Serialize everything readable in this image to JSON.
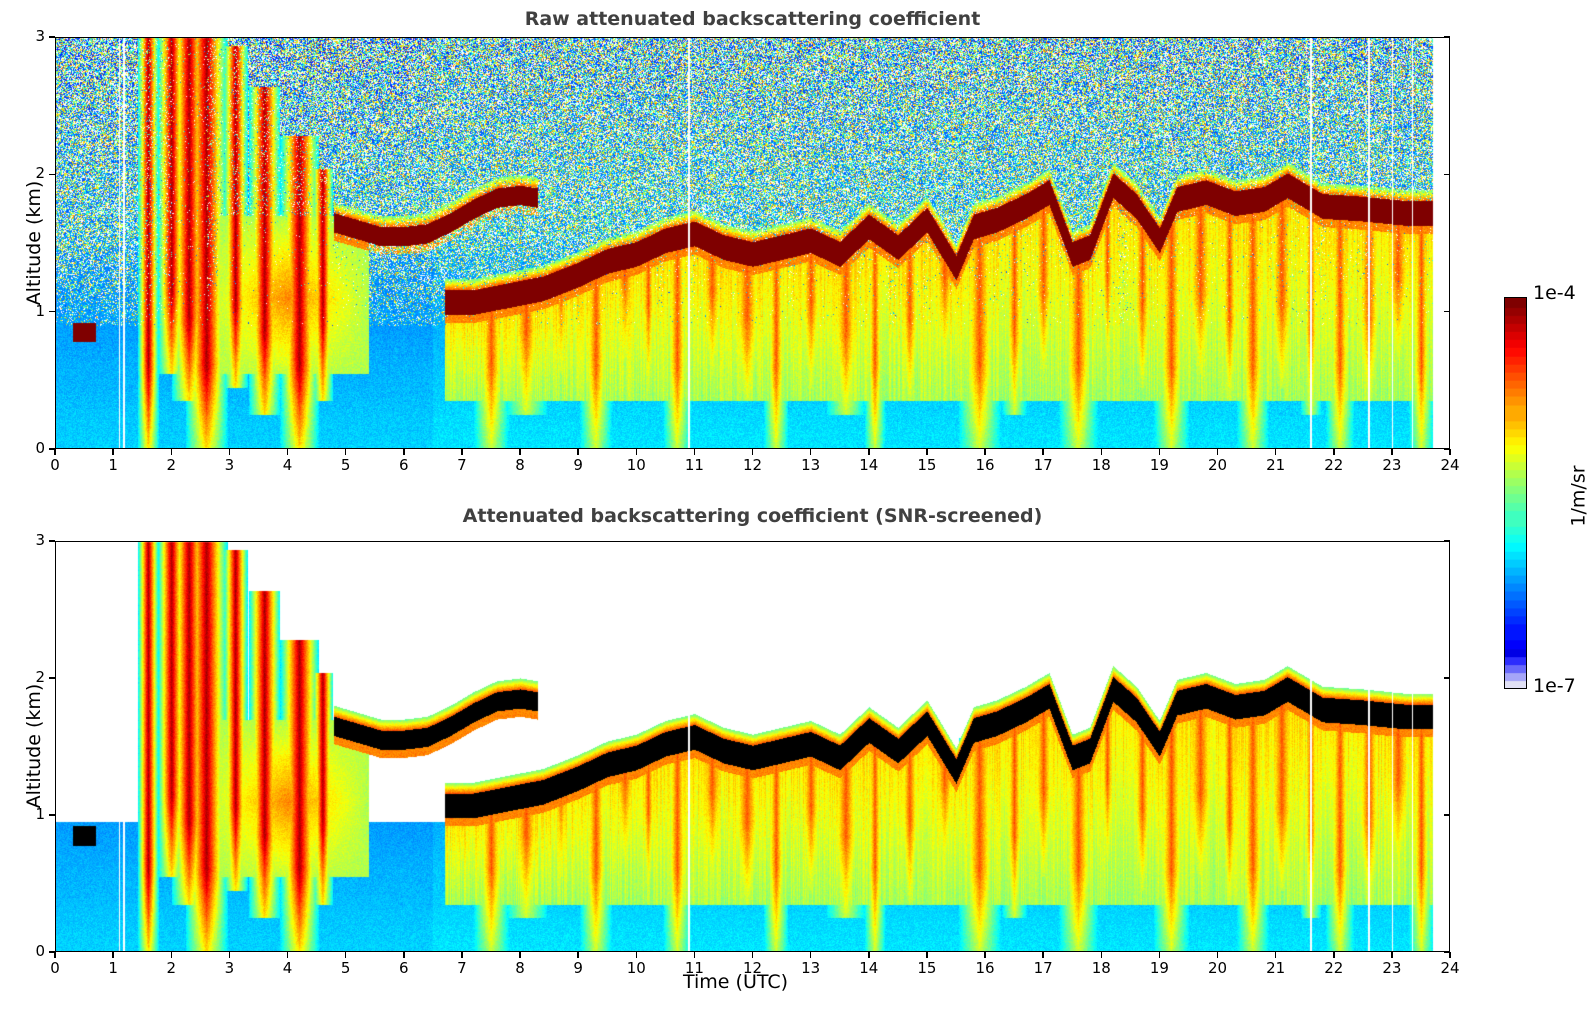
{
  "chart_data": [
    {
      "type": "heatmap",
      "title": "Raw attenuated backscattering coefficient",
      "xlabel": "",
      "ylabel": "Altitude (km)",
      "xlim": [
        0,
        24
      ],
      "ylim": [
        0,
        3
      ],
      "xticks": [
        "0",
        "1",
        "2",
        "3",
        "4",
        "5",
        "6",
        "7",
        "8",
        "9",
        "10",
        "11",
        "12",
        "13",
        "14",
        "15",
        "16",
        "17",
        "18",
        "19",
        "20",
        "21",
        "22",
        "23",
        "24"
      ],
      "yticks": [
        "0",
        "1",
        "2",
        "3"
      ],
      "screened": false
    },
    {
      "type": "heatmap",
      "title": "Attenuated backscattering coefficient (SNR-screened)",
      "xlabel": "Time (UTC)",
      "ylabel": "Altitude (km)",
      "xlim": [
        0,
        24
      ],
      "ylim": [
        0,
        3
      ],
      "xticks": [
        "0",
        "1",
        "2",
        "3",
        "4",
        "5",
        "6",
        "7",
        "8",
        "9",
        "10",
        "11",
        "12",
        "13",
        "14",
        "15",
        "16",
        "17",
        "18",
        "19",
        "20",
        "21",
        "22",
        "23",
        "24"
      ],
      "yticks": [
        "0",
        "1",
        "2",
        "3"
      ],
      "screened": true
    }
  ],
  "series": {
    "data_end_hour": 23.7,
    "cloud_layer_upper": {
      "time": [
        4.8,
        5.2,
        5.6,
        6.0,
        6.4,
        6.8,
        7.2,
        7.6,
        8.0,
        8.3
      ],
      "base_km": [
        1.6,
        1.55,
        1.5,
        1.5,
        1.52,
        1.6,
        1.7,
        1.78,
        1.8,
        1.78
      ]
    },
    "cloud_layer_main": {
      "time": [
        6.7,
        7.2,
        7.8,
        8.4,
        9.0,
        9.5,
        10.0,
        10.5,
        11.0,
        11.5,
        12.0,
        12.5,
        13.0,
        13.5,
        14.0,
        14.5,
        15.0,
        15.5,
        15.8,
        16.2,
        16.7,
        17.1,
        17.5,
        17.8,
        18.2,
        18.6,
        19.0,
        19.3,
        19.8,
        20.3,
        20.8,
        21.2,
        21.8,
        22.5,
        23.2,
        23.7
      ],
      "base_km": [
        1.0,
        1.0,
        1.05,
        1.1,
        1.2,
        1.3,
        1.35,
        1.45,
        1.5,
        1.4,
        1.35,
        1.4,
        1.45,
        1.35,
        1.55,
        1.4,
        1.6,
        1.25,
        1.55,
        1.6,
        1.7,
        1.8,
        1.35,
        1.4,
        1.85,
        1.7,
        1.45,
        1.75,
        1.8,
        1.72,
        1.75,
        1.85,
        1.7,
        1.68,
        1.65,
        1.65
      ]
    },
    "low_cloud": {
      "time_start": 0.3,
      "time_end": 0.7,
      "base_km": 0.85
    },
    "precip_streaks_hours": [
      1.6,
      2.0,
      2.3,
      2.6,
      3.1,
      3.6,
      4.2,
      4.6,
      7.0,
      7.5,
      8.1,
      8.7,
      9.3,
      9.8,
      10.2,
      10.7,
      11.3,
      11.9,
      12.4,
      13.0,
      13.6,
      14.1,
      14.7,
      15.3,
      15.9,
      16.5,
      17.0,
      17.6,
      18.1,
      18.7,
      19.2,
      19.7,
      20.2,
      20.6,
      21.1,
      21.6,
      22.1,
      22.6,
      23.1,
      23.5
    ]
  },
  "colorbar": {
    "label": "1/m/sr",
    "max_label": "1e-4",
    "min_label": "1e-7",
    "vmin": 1e-07,
    "vmax": 0.0001,
    "scale": "log",
    "colormap": "jet"
  },
  "colors": {
    "frame": "#000000",
    "title": "#404040",
    "screened_saturation": "#000000"
  }
}
